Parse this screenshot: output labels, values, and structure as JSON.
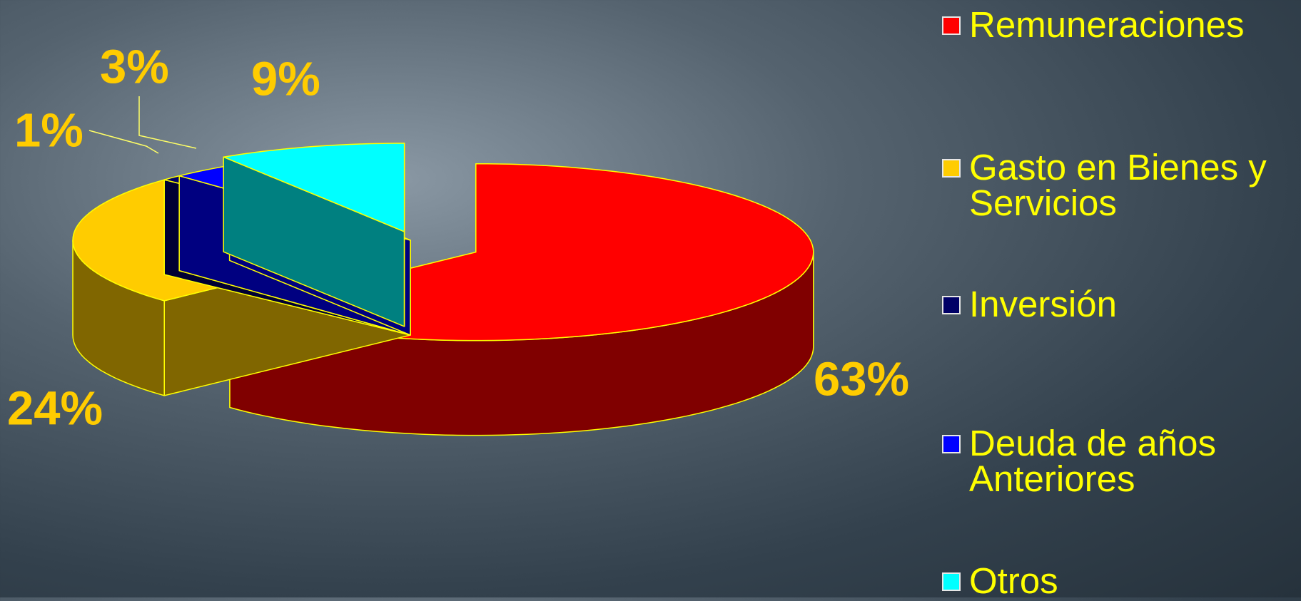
{
  "chart_data": {
    "type": "pie",
    "categories": [
      "Remuneraciones",
      "Gasto en Bienes y Servicios",
      "Inversión",
      "Deuda de años Anteriores",
      "Otros"
    ],
    "values": [
      63,
      24,
      1,
      3,
      9
    ],
    "value_labels": [
      "63%",
      "24%",
      "1%",
      "3%",
      "9%"
    ],
    "colors": [
      "#ff0000",
      "#ffcc00",
      "#000066",
      "#0000ff",
      "#00ffff"
    ],
    "legend": "right"
  }
}
